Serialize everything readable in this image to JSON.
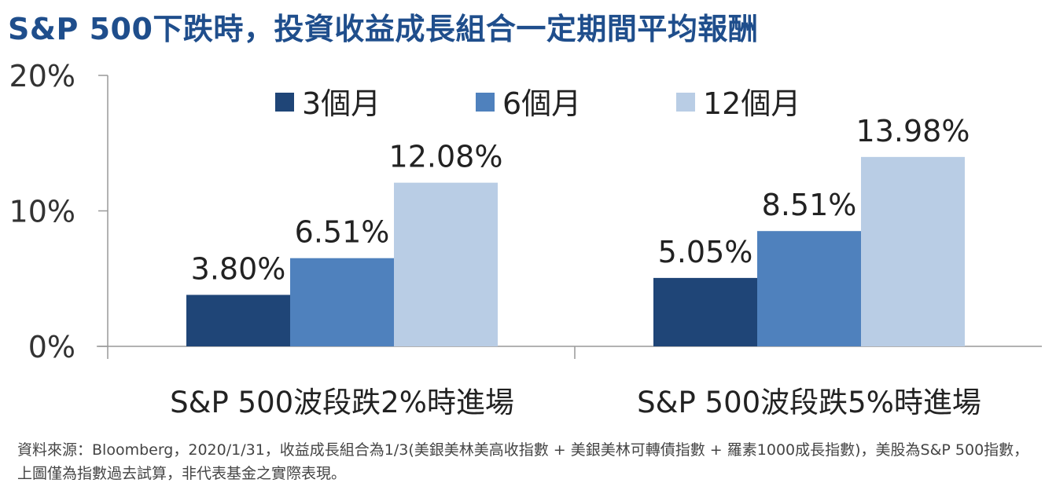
{
  "title": "S&P 500下跌時，投資收益成長組合一定期間平均報酬",
  "source_note": "資料來源：Bloomberg，2020/1/31，收益成長組合為1/3(美銀美林美高收指數 + 美銀美林可轉債指數 + 羅素1000成長指數)，美股為S&P 500指數，上圖僅為指數過去試算，非代表基金之實際表現。",
  "chart_data": {
    "type": "bar",
    "categories": [
      "S&P 500波段跌2%時進場",
      "S&P 500波段跌5%時進場"
    ],
    "series": [
      {
        "name": "3個月",
        "values": [
          3.8,
          5.05
        ],
        "labels": [
          "3.80%",
          "5.05%"
        ],
        "color": "#1f4577"
      },
      {
        "name": "6個月",
        "values": [
          6.51,
          8.51
        ],
        "labels": [
          "6.51%",
          "8.51%"
        ],
        "color": "#4f81bd"
      },
      {
        "name": "12個月",
        "values": [
          12.08,
          13.98
        ],
        "labels": [
          "12.08%",
          "13.98%"
        ],
        "color": "#b9cde5"
      }
    ],
    "yticks": [
      0,
      10,
      20
    ],
    "ytick_labels": [
      "0%",
      "10%",
      "20%"
    ],
    "ylim": [
      0,
      20
    ],
    "grid": false,
    "legend": "top-center"
  }
}
